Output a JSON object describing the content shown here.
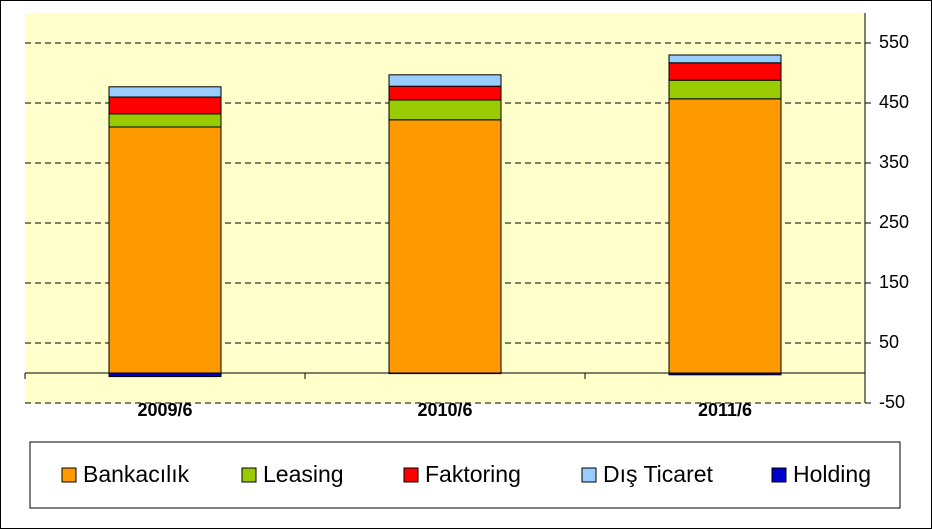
{
  "chart_data": {
    "type": "stacked_bar",
    "categories": [
      "2009/6",
      "2010/6",
      "2011/6"
    ],
    "series": [
      {
        "name": "Bankacılık",
        "color": "#ff9900",
        "values": [
          410,
          422,
          457
        ]
      },
      {
        "name": "Leasing",
        "color": "#99cc00",
        "values": [
          22,
          33,
          31
        ]
      },
      {
        "name": "Faktoring",
        "color": "#ff0000",
        "values": [
          28,
          23,
          29
        ]
      },
      {
        "name": "Dış Ticaret",
        "color": "#99ccff",
        "values": [
          17,
          19,
          13
        ]
      },
      {
        "name": "Holding",
        "color": "#0000cc",
        "values": [
          -6,
          -1,
          -3
        ]
      }
    ],
    "ylim": [
      -50,
      600
    ],
    "yticks": [
      -50,
      50,
      150,
      250,
      350,
      450,
      550
    ],
    "grid": true,
    "legend": "bottom"
  }
}
